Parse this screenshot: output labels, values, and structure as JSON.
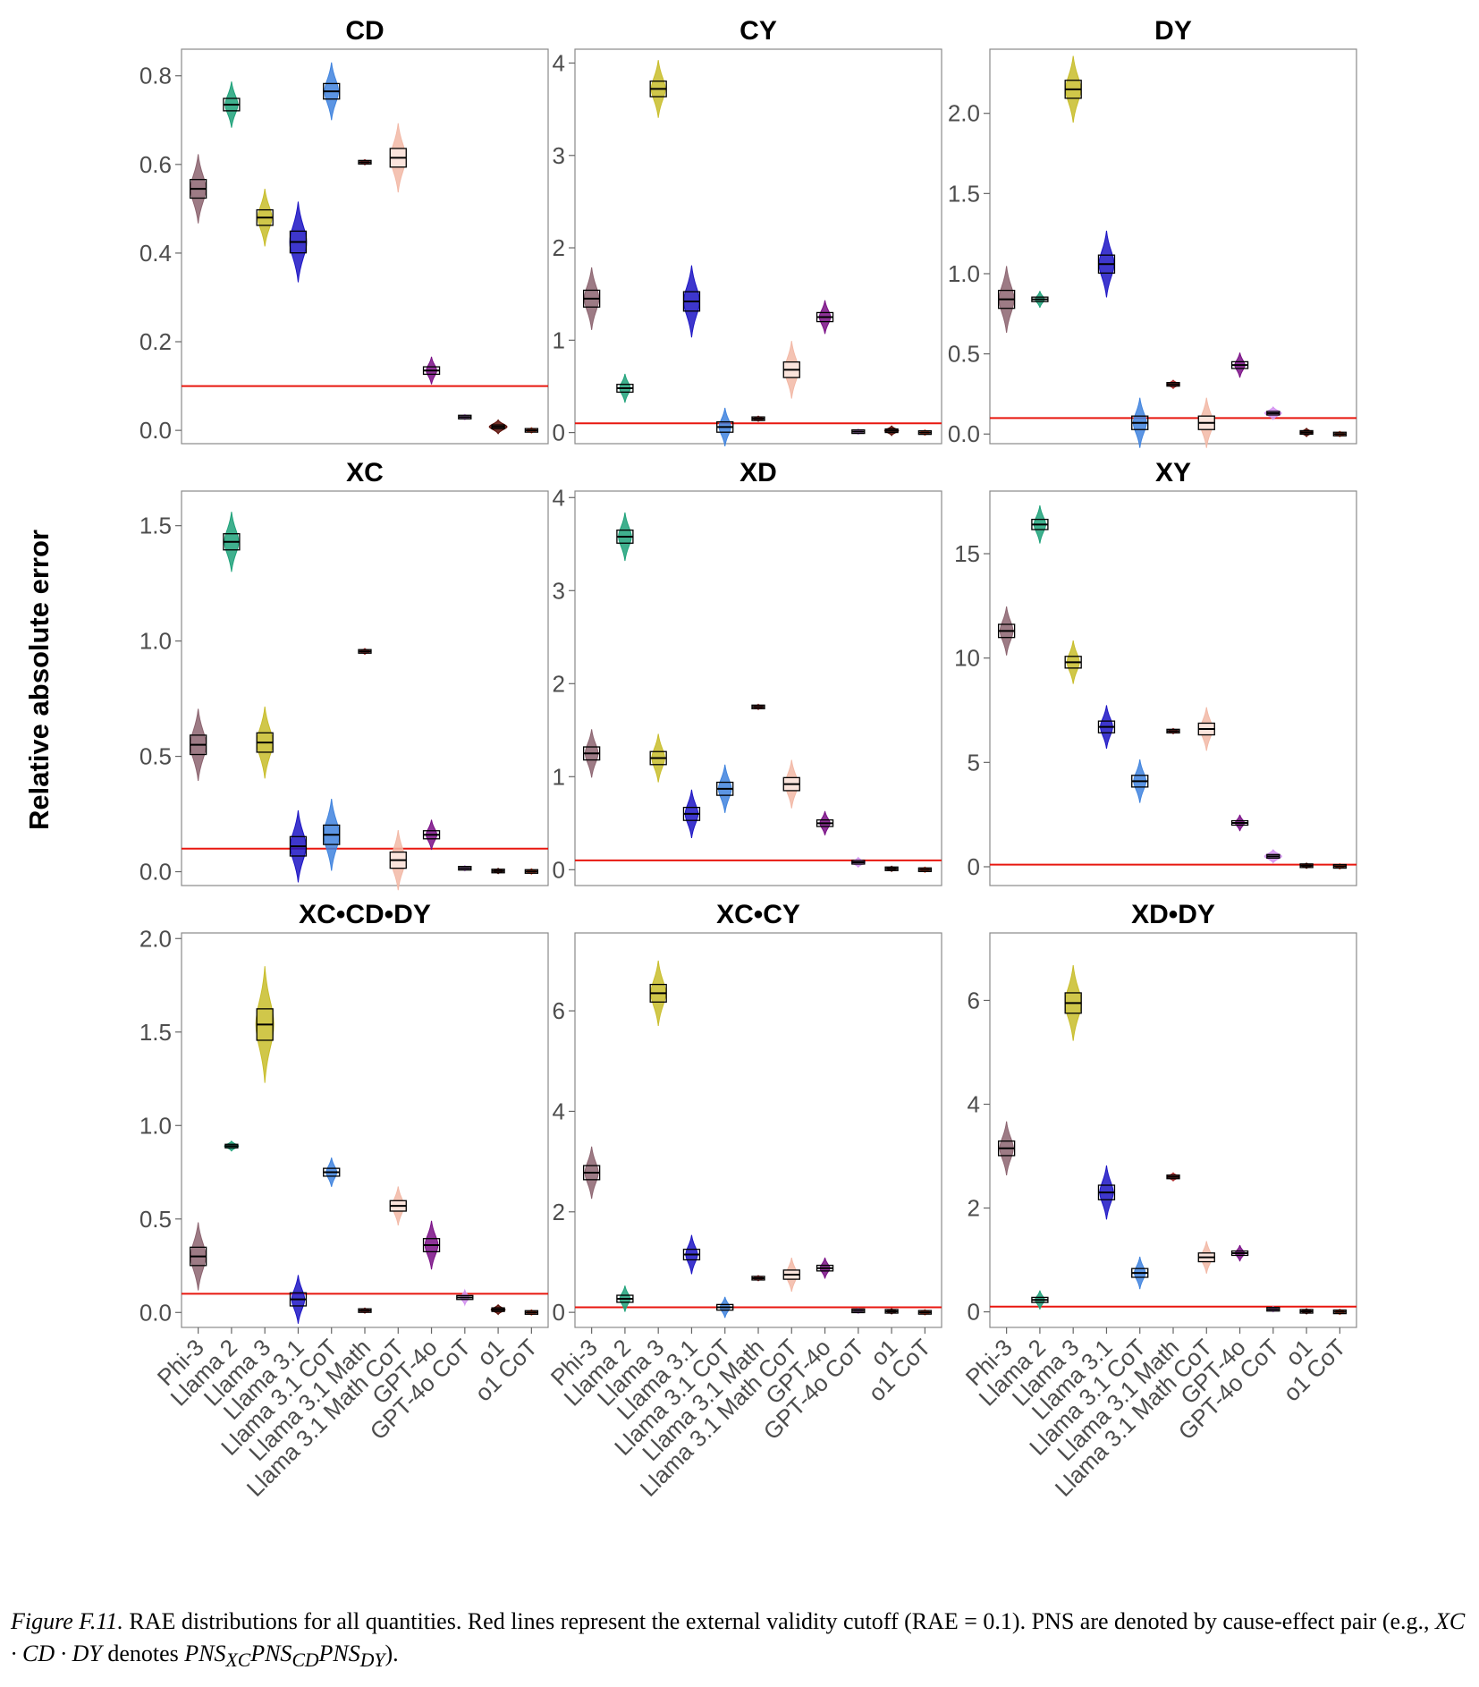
{
  "axis": {
    "ylabel": "Relative absolute error"
  },
  "models": [
    "Phi-3",
    "Llama 2",
    "Llama 3",
    "Llama 3.1",
    "Llama 3.1 CoT",
    "Llama 3.1 Math",
    "Llama 3.1 Math CoT",
    "GPT-4o",
    "GPT-4o CoT",
    "o1",
    "o1 CoT"
  ],
  "colors": {
    "Phi-3": "#8c6470",
    "Llama 2": "#1fa27a",
    "Llama 3": "#c8bd2a",
    "Llama 3.1": "#1c14c4",
    "Llama 3.1 CoT": "#3f83de",
    "Llama 3.1 Math": "#ad2c2c",
    "Llama 3.1 Math CoT": "#f2b8a6",
    "GPT-4o": "#7a0f86",
    "GPT-4o CoT": "#d291f0",
    "o1": "#5b0d05",
    "o1 CoT": "#e3441f",
    "cutoff_line": "#e8170f"
  },
  "cutoff": 0.1,
  "chart_data": [
    {
      "type": "violin",
      "title": "CD",
      "ylim": [
        -0.03,
        0.86
      ],
      "yticks": [
        "0.0",
        "0.2",
        "0.4",
        "0.6",
        "0.8"
      ],
      "values": [
        0.545,
        0.735,
        0.48,
        0.425,
        0.765,
        0.605,
        0.615,
        0.135,
        0.03,
        0.008,
        0.0
      ],
      "spread": [
        0.03,
        0.02,
        0.025,
        0.035,
        0.025,
        0.002,
        0.03,
        0.012,
        0.002,
        0.006,
        0.001
      ]
    },
    {
      "type": "violin",
      "title": "CY",
      "ylim": [
        -0.12,
        4.15
      ],
      "yticks": [
        "0",
        "1",
        "2",
        "3",
        "4"
      ],
      "values": [
        1.45,
        0.48,
        3.72,
        1.42,
        0.06,
        0.15,
        0.68,
        1.25,
        0.01,
        0.02,
        0.0
      ],
      "spread": [
        0.13,
        0.06,
        0.12,
        0.15,
        0.08,
        0.01,
        0.12,
        0.07,
        0.005,
        0.02,
        0.003
      ]
    },
    {
      "type": "violin",
      "title": "DY",
      "ylim": [
        -0.06,
        2.4
      ],
      "yticks": [
        "0.0",
        "0.5",
        "1.0",
        "1.5",
        "2.0"
      ],
      "values": [
        0.84,
        0.84,
        2.15,
        1.06,
        0.07,
        0.31,
        0.07,
        0.43,
        0.13,
        0.01,
        0.0
      ],
      "spread": [
        0.08,
        0.02,
        0.08,
        0.08,
        0.06,
        0.01,
        0.06,
        0.03,
        0.015,
        0.01,
        0.002
      ]
    },
    {
      "type": "violin",
      "title": "XC",
      "ylim": [
        -0.06,
        1.65
      ],
      "yticks": [
        "0.0",
        "0.5",
        "1.0",
        "1.5"
      ],
      "values": [
        0.55,
        1.43,
        0.56,
        0.11,
        0.16,
        0.955,
        0.05,
        0.16,
        0.015,
        0.003,
        0.001
      ],
      "spread": [
        0.06,
        0.05,
        0.06,
        0.06,
        0.06,
        0.005,
        0.05,
        0.025,
        0.004,
        0.003,
        0.001
      ]
    },
    {
      "type": "violin",
      "title": "XD",
      "ylim": [
        -0.17,
        4.07
      ],
      "yticks": [
        "0",
        "1",
        "2",
        "3",
        "4"
      ],
      "values": [
        1.25,
        3.58,
        1.2,
        0.6,
        0.87,
        1.75,
        0.92,
        0.5,
        0.08,
        0.01,
        0.0
      ],
      "spread": [
        0.1,
        0.1,
        0.1,
        0.1,
        0.1,
        0.01,
        0.1,
        0.05,
        0.02,
        0.01,
        0.004
      ]
    },
    {
      "type": "violin",
      "title": "XY",
      "ylim": [
        -0.9,
        18.0
      ],
      "yticks": [
        "0",
        "5",
        "10",
        "15"
      ],
      "values": [
        11.3,
        16.4,
        9.8,
        6.7,
        4.1,
        6.5,
        6.6,
        2.1,
        0.5,
        0.05,
        0.02
      ],
      "spread": [
        0.45,
        0.35,
        0.4,
        0.4,
        0.4,
        0.05,
        0.4,
        0.15,
        0.12,
        0.03,
        0.02
      ]
    },
    {
      "type": "violin",
      "title": "XC•CD•DY",
      "ylim": [
        -0.08,
        2.03
      ],
      "yticks": [
        "0.0",
        "0.5",
        "1.0",
        "1.5",
        "2.0"
      ],
      "values": [
        0.3,
        0.89,
        1.54,
        0.07,
        0.75,
        0.01,
        0.57,
        0.36,
        0.08,
        0.015,
        0.0
      ],
      "spread": [
        0.07,
        0.01,
        0.12,
        0.05,
        0.03,
        0.004,
        0.04,
        0.05,
        0.015,
        0.01,
        0.002
      ]
    },
    {
      "type": "violin",
      "title": "XC•CY",
      "ylim": [
        -0.3,
        7.55
      ],
      "yticks": [
        "0",
        "2",
        "4",
        "6"
      ],
      "values": [
        2.78,
        0.27,
        6.35,
        1.15,
        0.1,
        0.68,
        0.75,
        0.88,
        0.03,
        0.02,
        0.0
      ],
      "spread": [
        0.2,
        0.1,
        0.25,
        0.15,
        0.08,
        0.02,
        0.13,
        0.08,
        0.008,
        0.02,
        0.005
      ]
    },
    {
      "type": "violin",
      "title": "XD•DY",
      "ylim": [
        -0.3,
        7.3
      ],
      "yticks": [
        "0",
        "2",
        "4",
        "6"
      ],
      "values": [
        3.15,
        0.23,
        5.95,
        2.3,
        0.75,
        2.6,
        1.05,
        1.13,
        0.05,
        0.01,
        0.0
      ],
      "spread": [
        0.2,
        0.07,
        0.28,
        0.2,
        0.12,
        0.03,
        0.12,
        0.06,
        0.02,
        0.01,
        0.005
      ]
    }
  ],
  "caption": {
    "label": "Figure F.11.",
    "text1": " RAE distributions for all quantities.  Red lines represent the external validity cutoff (RAE = 0.1).  PNS are denoted by cause-effect pair (e.g., ",
    "math1": "XC · CD · DY",
    "text2": " denotes ",
    "math2": "PNS",
    "sub1": "XC",
    "math3": "PNS",
    "sub2": "CD",
    "math4": "PNS",
    "sub3": "DY",
    "text3": ")."
  }
}
